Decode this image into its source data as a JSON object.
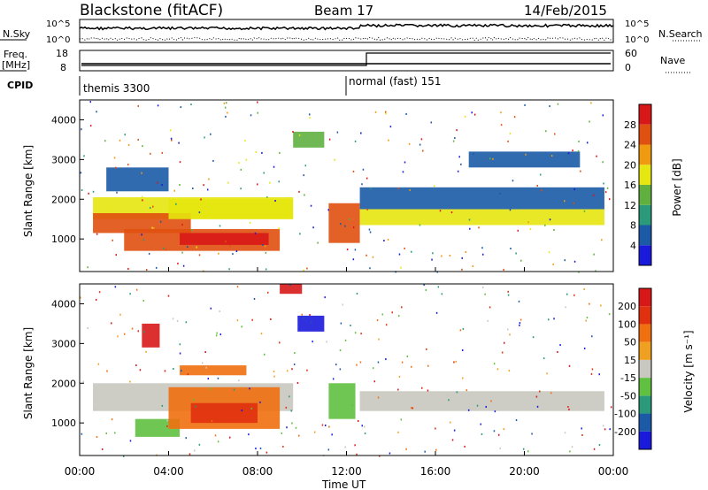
{
  "header": {
    "radar": "Blackstone (fitACF)",
    "beam": "Beam 17",
    "date": "14/Feb/2015"
  },
  "noise_panel": {
    "left_label": "N.Sky",
    "right_label": "N.Search",
    "left_ticks": [
      "10^5",
      "10^0"
    ],
    "right_ticks": [
      "10^5",
      "10^0"
    ]
  },
  "freq_panel": {
    "left_label_1": "Freq.",
    "left_label_2": "[MHz]",
    "right_label": "Nave",
    "left_ticks": [
      "18",
      "8"
    ],
    "right_ticks": [
      "60",
      "0"
    ],
    "freq_mhz_before_1245": 10.5,
    "freq_mhz_after_1245": 10.5,
    "nave_before_1245": 20,
    "nave_after_1245": 60
  },
  "cpid_panel": {
    "label": "CPID",
    "segments": [
      {
        "start_hour": 0.0,
        "label": "themis 3300"
      },
      {
        "start_hour": 12.0,
        "label": "normal (fast) 151"
      }
    ]
  },
  "chart_data": [
    {
      "type": "heatmap",
      "name": "power",
      "ylabel": "Slant Range [km]",
      "ylim": [
        180,
        4500
      ],
      "yticks": [
        "1000",
        "2000",
        "3000",
        "4000"
      ],
      "xlim": [
        0,
        24
      ],
      "colorbar": {
        "label": "Power [dB]",
        "ticks": [
          "4",
          "8",
          "12",
          "16",
          "20",
          "24",
          "28"
        ],
        "colors": [
          "#1a1adc",
          "#1a5aa6",
          "#2a9a7a",
          "#60b040",
          "#e6e610",
          "#f09a10",
          "#e05010",
          "#d81818"
        ]
      },
      "bands": [
        {
          "x_start": 0.6,
          "x_end": 9.6,
          "range_start": 1500,
          "range_end": 2050,
          "level": 4
        },
        {
          "x_start": 0.6,
          "x_end": 5.0,
          "range_start": 1150,
          "range_end": 1650,
          "level": 6
        },
        {
          "x_start": 4.0,
          "x_end": 9.6,
          "range_start": 1500,
          "range_end": 2000,
          "level": 4
        },
        {
          "x_start": 2.0,
          "x_end": 9.0,
          "range_start": 700,
          "range_end": 1250,
          "level": 6
        },
        {
          "x_start": 4.5,
          "x_end": 8.5,
          "range_start": 850,
          "range_end": 1150,
          "level": 7
        },
        {
          "x_start": 11.2,
          "x_end": 12.6,
          "range_start": 900,
          "range_end": 1900,
          "level": 6
        },
        {
          "x_start": 12.6,
          "x_end": 23.6,
          "range_start": 1350,
          "range_end": 1750,
          "level": 4
        },
        {
          "x_start": 12.6,
          "x_end": 23.6,
          "range_start": 1750,
          "range_end": 2300,
          "level": 1
        },
        {
          "x_start": 1.2,
          "x_end": 4.0,
          "range_start": 2200,
          "range_end": 2800,
          "level": 1
        },
        {
          "x_start": 9.6,
          "x_end": 11.0,
          "range_start": 3300,
          "range_end": 3700,
          "level": 3
        },
        {
          "x_start": 17.5,
          "x_end": 22.5,
          "range_start": 2800,
          "range_end": 3200,
          "level": 1
        }
      ]
    },
    {
      "type": "heatmap",
      "name": "velocity",
      "ylabel": "Slant Range [km]",
      "ylim": [
        180,
        4500
      ],
      "yticks": [
        "1000",
        "2000",
        "3000",
        "4000"
      ],
      "xlim": [
        0,
        24
      ],
      "colorbar": {
        "label": "Velocity [m s⁻¹]",
        "ticks": [
          "200",
          "100",
          "50",
          "15",
          "-15",
          "-50",
          "-100",
          "-200"
        ],
        "colors": [
          "#1a1adc",
          "#1a5aa6",
          "#2a9a7a",
          "#60c040",
          "#c8c8c0",
          "#f0a020",
          "#f07010",
          "#e03010",
          "#d81818"
        ]
      },
      "bands": [
        {
          "x_start": 0.6,
          "x_end": 9.6,
          "range_start": 1300,
          "range_end": 2000,
          "level": 4
        },
        {
          "x_start": 12.6,
          "x_end": 23.6,
          "range_start": 1300,
          "range_end": 1800,
          "level": 4
        },
        {
          "x_start": 2.5,
          "x_end": 4.5,
          "range_start": 650,
          "range_end": 1100,
          "level": 3
        },
        {
          "x_start": 4.0,
          "x_end": 9.0,
          "range_start": 850,
          "range_end": 1900,
          "level": 6
        },
        {
          "x_start": 5.0,
          "x_end": 8.0,
          "range_start": 1000,
          "range_end": 1500,
          "level": 7
        },
        {
          "x_start": 4.5,
          "x_end": 7.5,
          "range_start": 2200,
          "range_end": 2450,
          "level": 6
        },
        {
          "x_start": 11.2,
          "x_end": 12.4,
          "range_start": 1100,
          "range_end": 2000,
          "level": 3
        },
        {
          "x_start": 2.8,
          "x_end": 3.6,
          "range_start": 2900,
          "range_end": 3500,
          "level": 8
        },
        {
          "x_start": 9.8,
          "x_end": 11.0,
          "range_start": 3300,
          "range_end": 3700,
          "level": 0
        },
        {
          "x_start": 9.0,
          "x_end": 10.0,
          "range_start": 4250,
          "range_end": 4500,
          "level": 8
        }
      ]
    }
  ],
  "x_axis": {
    "label": "Time UT",
    "ticks": [
      "00:00",
      "04:00",
      "08:00",
      "12:00",
      "16:00",
      "20:00",
      "00:00"
    ],
    "tick_hours": [
      0,
      4,
      8,
      12,
      16,
      20,
      24
    ]
  }
}
